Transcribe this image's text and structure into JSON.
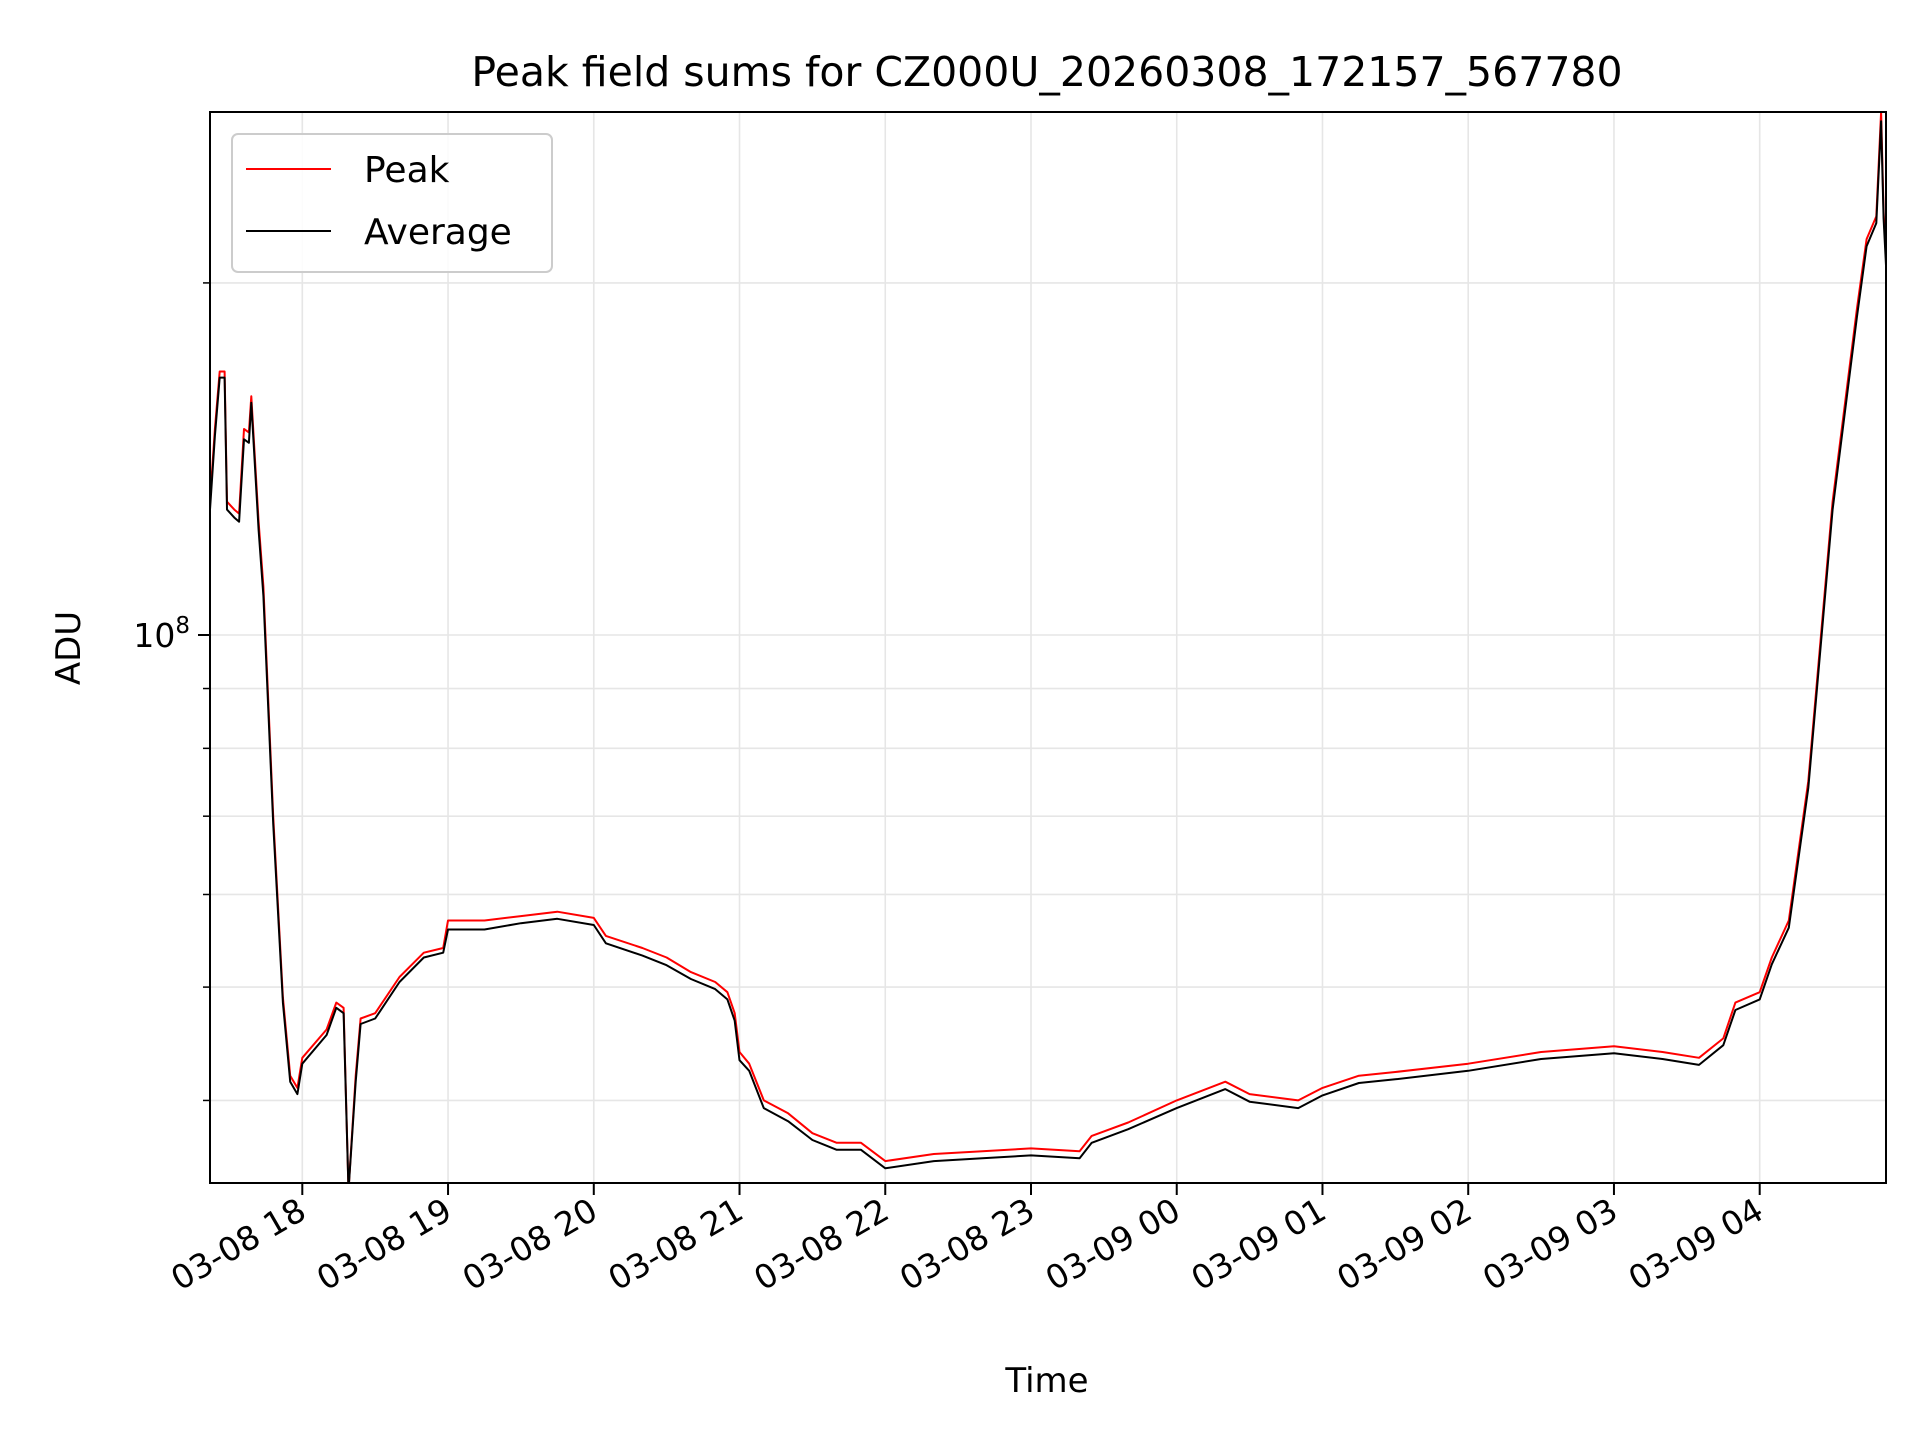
{
  "chart_data": {
    "type": "line",
    "title": "Peak field sums for CZ000U_20260308_172157_567780",
    "xlabel": "Time",
    "ylabel": "ADU",
    "yscale": "log",
    "grid": true,
    "legend_position": "top-left",
    "x_ticks": [
      "03-08 18",
      "03-08 19",
      "03-08 20",
      "03-08 21",
      "03-08 22",
      "03-08 23",
      "03-09 00",
      "03-09 01",
      "03-09 02",
      "03-09 03",
      "03-09 04"
    ],
    "y_major_tick": {
      "base": "10",
      "exponent": "8"
    },
    "xlim": [
      "2026-03-08 17:22",
      "2026-03-09 04:52"
    ],
    "ylim": [
      34000000,
      280000000
    ],
    "series": [
      {
        "name": "Peak",
        "color": "#ff0000",
        "points": [
          [
            "2026-03-08 17:22",
            130000000
          ],
          [
            "2026-03-08 17:24",
            150000000
          ],
          [
            "2026-03-08 17:26",
            168000000
          ],
          [
            "2026-03-08 17:28",
            168000000
          ],
          [
            "2026-03-08 17:29",
            130000000
          ],
          [
            "2026-03-08 17:32",
            128000000
          ],
          [
            "2026-03-08 17:34",
            127000000
          ],
          [
            "2026-03-08 17:36",
            150000000
          ],
          [
            "2026-03-08 17:38",
            149000000
          ],
          [
            "2026-03-08 17:39",
            160000000
          ],
          [
            "2026-03-08 17:42",
            125000000
          ],
          [
            "2026-03-08 17:44",
            110000000
          ],
          [
            "2026-03-08 17:48",
            70000000
          ],
          [
            "2026-03-08 17:52",
            49000000
          ],
          [
            "2026-03-08 17:55",
            42000000
          ],
          [
            "2026-03-08 17:58",
            41000000
          ],
          [
            "2026-03-08 18:00",
            43500000
          ],
          [
            "2026-03-08 18:10",
            46000000
          ],
          [
            "2026-03-08 18:14",
            48500000
          ],
          [
            "2026-03-08 18:17",
            48000000
          ],
          [
            "2026-03-08 18:19",
            33500000
          ],
          [
            "2026-03-08 18:22",
            42000000
          ],
          [
            "2026-03-08 18:24",
            47000000
          ],
          [
            "2026-03-08 18:30",
            47500000
          ],
          [
            "2026-03-08 18:40",
            51000000
          ],
          [
            "2026-03-08 18:50",
            53500000
          ],
          [
            "2026-03-08 18:58",
            54000000
          ],
          [
            "2026-03-08 19:00",
            57000000
          ],
          [
            "2026-03-08 19:15",
            57000000
          ],
          [
            "2026-03-08 19:30",
            57500000
          ],
          [
            "2026-03-08 19:45",
            58000000
          ],
          [
            "2026-03-08 20:00",
            57300000
          ],
          [
            "2026-03-08 20:05",
            55300000
          ],
          [
            "2026-03-08 20:20",
            54000000
          ],
          [
            "2026-03-08 20:30",
            53000000
          ],
          [
            "2026-03-08 20:40",
            51500000
          ],
          [
            "2026-03-08 20:50",
            50500000
          ],
          [
            "2026-03-08 20:55",
            49500000
          ],
          [
            "2026-03-08 20:58",
            47500000
          ],
          [
            "2026-03-08 21:00",
            44000000
          ],
          [
            "2026-03-08 21:04",
            43000000
          ],
          [
            "2026-03-08 21:10",
            40000000
          ],
          [
            "2026-03-08 21:20",
            39000000
          ],
          [
            "2026-03-08 21:30",
            37500000
          ],
          [
            "2026-03-08 21:40",
            36800000
          ],
          [
            "2026-03-08 21:50",
            36800000
          ],
          [
            "2026-03-08 22:00",
            35500000
          ],
          [
            "2026-03-08 22:20",
            36000000
          ],
          [
            "2026-03-08 22:40",
            36200000
          ],
          [
            "2026-03-08 23:00",
            36400000
          ],
          [
            "2026-03-08 23:20",
            36200000
          ],
          [
            "2026-03-08 23:25",
            37300000
          ],
          [
            "2026-03-08 23:40",
            38300000
          ],
          [
            "2026-03-09 00:00",
            40000000
          ],
          [
            "2026-03-09 00:20",
            41500000
          ],
          [
            "2026-03-09 00:30",
            40500000
          ],
          [
            "2026-03-09 00:50",
            40000000
          ],
          [
            "2026-03-09 01:00",
            41000000
          ],
          [
            "2026-03-09 01:15",
            42000000
          ],
          [
            "2026-03-09 01:30",
            42300000
          ],
          [
            "2026-03-09 02:00",
            43000000
          ],
          [
            "2026-03-09 02:30",
            44000000
          ],
          [
            "2026-03-09 03:00",
            44500000
          ],
          [
            "2026-03-09 03:20",
            44000000
          ],
          [
            "2026-03-09 03:35",
            43500000
          ],
          [
            "2026-03-09 03:45",
            45200000
          ],
          [
            "2026-03-09 03:50",
            48500000
          ],
          [
            "2026-03-09 04:00",
            49500000
          ],
          [
            "2026-03-09 04:05",
            53000000
          ],
          [
            "2026-03-09 04:12",
            57000000
          ],
          [
            "2026-03-09 04:20",
            75000000
          ],
          [
            "2026-03-09 04:30",
            130000000
          ],
          [
            "2026-03-09 04:40",
            190000000
          ],
          [
            "2026-03-09 04:44",
            218000000
          ],
          [
            "2026-03-09 04:48",
            228000000
          ],
          [
            "2026-03-09 04:50",
            280000000
          ],
          [
            "2026-03-09 04:51",
            230000000
          ],
          [
            "2026-03-09 04:52",
            210000000
          ]
        ]
      },
      {
        "name": "Average",
        "color": "#000000",
        "points": [
          [
            "2026-03-08 17:22",
            128000000
          ],
          [
            "2026-03-08 17:24",
            148000000
          ],
          [
            "2026-03-08 17:26",
            166000000
          ],
          [
            "2026-03-08 17:28",
            166000000
          ],
          [
            "2026-03-08 17:29",
            128000000
          ],
          [
            "2026-03-08 17:32",
            126000000
          ],
          [
            "2026-03-08 17:34",
            125000000
          ],
          [
            "2026-03-08 17:36",
            147000000
          ],
          [
            "2026-03-08 17:38",
            146000000
          ],
          [
            "2026-03-08 17:39",
            158000000
          ],
          [
            "2026-03-08 17:42",
            123000000
          ],
          [
            "2026-03-08 17:44",
            108000000
          ],
          [
            "2026-03-08 17:48",
            69000000
          ],
          [
            "2026-03-08 17:52",
            48500000
          ],
          [
            "2026-03-08 17:55",
            41500000
          ],
          [
            "2026-03-08 17:58",
            40500000
          ],
          [
            "2026-03-08 18:00",
            43000000
          ],
          [
            "2026-03-08 18:10",
            45500000
          ],
          [
            "2026-03-08 18:14",
            48000000
          ],
          [
            "2026-03-08 18:17",
            47500000
          ],
          [
            "2026-03-08 18:19",
            33500000
          ],
          [
            "2026-03-08 18:22",
            41500000
          ],
          [
            "2026-03-08 18:24",
            46500000
          ],
          [
            "2026-03-08 18:30",
            47000000
          ],
          [
            "2026-03-08 18:40",
            50500000
          ],
          [
            "2026-03-08 18:50",
            53000000
          ],
          [
            "2026-03-08 18:58",
            53500000
          ],
          [
            "2026-03-08 19:00",
            56000000
          ],
          [
            "2026-03-08 19:15",
            56000000
          ],
          [
            "2026-03-08 19:30",
            56700000
          ],
          [
            "2026-03-08 19:45",
            57200000
          ],
          [
            "2026-03-08 20:00",
            56500000
          ],
          [
            "2026-03-08 20:05",
            54500000
          ],
          [
            "2026-03-08 20:20",
            53200000
          ],
          [
            "2026-03-08 20:30",
            52200000
          ],
          [
            "2026-03-08 20:40",
            50800000
          ],
          [
            "2026-03-08 20:50",
            49800000
          ],
          [
            "2026-03-08 20:55",
            48800000
          ],
          [
            "2026-03-08 20:58",
            46800000
          ],
          [
            "2026-03-08 21:00",
            43300000
          ],
          [
            "2026-03-08 21:04",
            42400000
          ],
          [
            "2026-03-08 21:10",
            39400000
          ],
          [
            "2026-03-08 21:20",
            38400000
          ],
          [
            "2026-03-08 21:30",
            37000000
          ],
          [
            "2026-03-08 21:40",
            36300000
          ],
          [
            "2026-03-08 21:50",
            36300000
          ],
          [
            "2026-03-08 22:00",
            35000000
          ],
          [
            "2026-03-08 22:20",
            35500000
          ],
          [
            "2026-03-08 22:40",
            35700000
          ],
          [
            "2026-03-08 23:00",
            35900000
          ],
          [
            "2026-03-08 23:20",
            35700000
          ],
          [
            "2026-03-08 23:25",
            36800000
          ],
          [
            "2026-03-08 23:40",
            37800000
          ],
          [
            "2026-03-09 00:00",
            39400000
          ],
          [
            "2026-03-09 00:20",
            40900000
          ],
          [
            "2026-03-09 00:30",
            39900000
          ],
          [
            "2026-03-09 00:50",
            39400000
          ],
          [
            "2026-03-09 01:00",
            40400000
          ],
          [
            "2026-03-09 01:15",
            41400000
          ],
          [
            "2026-03-09 01:30",
            41700000
          ],
          [
            "2026-03-09 02:00",
            42400000
          ],
          [
            "2026-03-09 02:30",
            43400000
          ],
          [
            "2026-03-09 03:00",
            43900000
          ],
          [
            "2026-03-09 03:20",
            43400000
          ],
          [
            "2026-03-09 03:35",
            42900000
          ],
          [
            "2026-03-09 03:45",
            44600000
          ],
          [
            "2026-03-09 03:50",
            47800000
          ],
          [
            "2026-03-09 04:00",
            48800000
          ],
          [
            "2026-03-09 04:05",
            52300000
          ],
          [
            "2026-03-09 04:12",
            56200000
          ],
          [
            "2026-03-09 04:20",
            74000000
          ],
          [
            "2026-03-09 04:30",
            128000000
          ],
          [
            "2026-03-09 04:40",
            187000000
          ],
          [
            "2026-03-09 04:44",
            215000000
          ],
          [
            "2026-03-09 04:48",
            225000000
          ],
          [
            "2026-03-09 04:50",
            275000000
          ],
          [
            "2026-03-09 04:51",
            227000000
          ],
          [
            "2026-03-09 04:52",
            207000000
          ]
        ]
      }
    ]
  }
}
